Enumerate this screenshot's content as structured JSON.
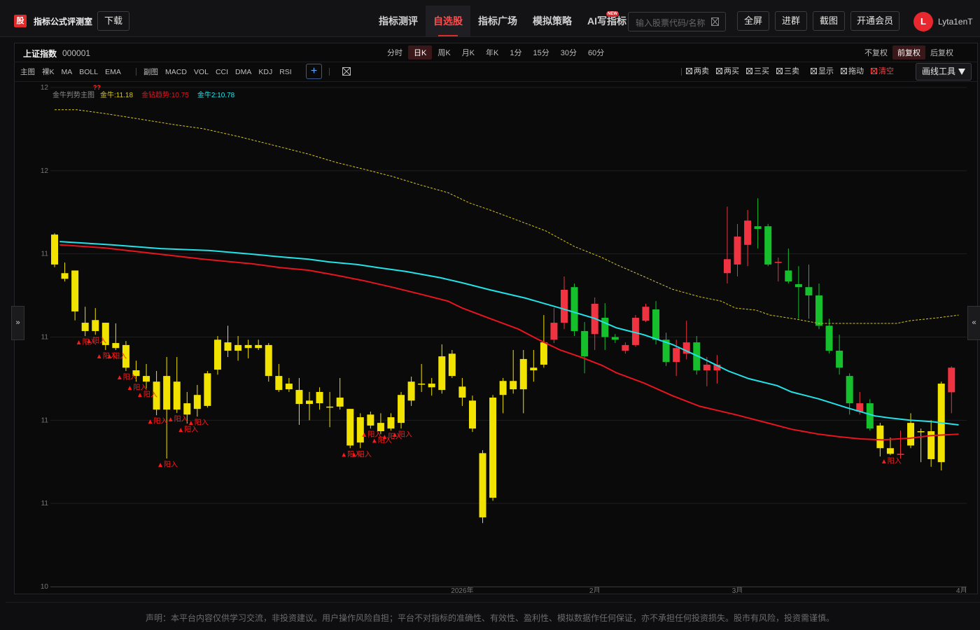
{
  "header": {
    "logo": "股",
    "site_name": "指标公式评测室",
    "download": "下载",
    "nav": [
      "指标测评",
      "自选股",
      "指标广场",
      "模拟策略",
      "AI写指标"
    ],
    "nav_active": 1,
    "nav_badge": "NEW",
    "search_placeholder": "输入股票代码/名称",
    "buttons": [
      "全屏",
      "进群",
      "截图",
      "开通会员"
    ],
    "avatar": "L",
    "username": "Lyta1enT"
  },
  "stock": {
    "name": "上证指数",
    "code": "000001"
  },
  "periods": [
    "分时",
    "日K",
    "周K",
    "月K",
    "年K",
    "1分",
    "15分",
    "30分",
    "60分"
  ],
  "period_active": 1,
  "adjustments": [
    "不复权",
    "前复权",
    "后复权"
  ],
  "adjustment_active": 1,
  "main_tools": [
    "主图",
    "裸K",
    "MA",
    "BOLL",
    "EMA"
  ],
  "sub_tools": [
    "副图",
    "MACD",
    "VOL",
    "CCI",
    "DMA",
    "KDJ",
    "RSI"
  ],
  "add_button": "+",
  "draw_toggles": [
    "两卖",
    "两买",
    "三买",
    "三卖",
    "显示",
    "拖动",
    "清空"
  ],
  "draw_toggle_alert": 6,
  "draw_tools": "画线工具",
  "side_tabs": [
    "»",
    "«"
  ],
  "footer": "声明：本平台内容仅供学习交流，非投资建议。用户操作风险自担；平台不对指标的准确性、有效性、盈利性、模拟数据作任何保证，亦不承担任何投资损失。股市有风险，投资需谨慎。",
  "chart_data": {
    "type": "candlestick",
    "title": "金牛判势主图",
    "title_note": "??",
    "categories": [
      null,
      null,
      null,
      null,
      null,
      null,
      null,
      null,
      null,
      null,
      null,
      null,
      null,
      null,
      null,
      null,
      null,
      null,
      null,
      null,
      null,
      null,
      null,
      null,
      null,
      null,
      null,
      null,
      null,
      null,
      null,
      null,
      null,
      null,
      null,
      null,
      null,
      null,
      null,
      null,
      "2026年",
      null,
      null,
      null,
      null,
      null,
      null,
      null,
      null,
      null,
      null,
      null,
      null,
      "2月",
      null,
      null,
      null,
      null,
      null,
      null,
      null,
      null,
      null,
      null,
      null,
      null,
      null,
      "3月",
      null,
      null,
      null,
      null,
      null,
      null,
      null,
      null,
      null,
      null,
      null,
      null,
      null,
      null,
      null,
      null,
      null,
      null,
      null,
      null,
      null,
      "4月"
    ],
    "open": [
      11.308,
      11.192,
      11.2,
      11.043,
      11.051,
      11.043,
      10.982,
      10.976,
      10.9,
      10.883,
      10.866,
      10.883,
      10.866,
      10.801,
      10.826,
      10.891,
      10.992,
      10.984,
      10.976,
      10.976,
      10.976,
      10.976,
      10.883,
      10.86,
      10.841,
      10.809,
      10.835,
      10.791,
      10.818,
      10.784,
      10.759,
      10.767,
      10.742,
      10.759,
      10.826,
      10.866,
      10.86,
      10.86,
      10.942,
      10.95,
      10.851,
      10.809,
      10.651,
      10.818,
      10.868,
      10.868,
      10.934,
      10.908,
      10.984,
      10.992,
      11.043,
      11.15,
      11.018,
      11.009,
      11.058,
      11.0,
      10.959,
      10.976,
      11.049,
      11.083,
      10.992,
      10.925,
      10.95,
      10.984,
      10.9,
      10.9,
      11.192,
      11.218,
      11.277,
      11.333,
      11.333,
      11.226,
      11.2,
      11.159,
      11.15,
      11.125,
      11.034,
      10.959,
      10.883,
      10.776,
      10.801,
      10.734,
      10.666,
      10.649,
      10.742,
      10.717,
      10.717,
      10.86,
      10.834,
      null
    ],
    "high": [
      11.312,
      11.224,
      11.2,
      11.091,
      11.087,
      11.043,
      11.041,
      10.988,
      10.929,
      10.919,
      10.898,
      10.94,
      10.94,
      10.835,
      10.856,
      10.898,
      11.003,
      11.034,
      11.003,
      10.992,
      10.992,
      10.982,
      10.919,
      10.877,
      10.877,
      10.835,
      10.849,
      10.835,
      10.877,
      10.784,
      10.771,
      10.776,
      10.771,
      10.771,
      10.835,
      10.881,
      10.919,
      10.877,
      10.978,
      10.961,
      10.877,
      10.824,
      10.66,
      10.826,
      10.877,
      10.961,
      10.961,
      10.961,
      11.066,
      11.087,
      11.182,
      11.161,
      11.045,
      11.119,
      11.102,
      11.009,
      10.984,
      11.066,
      11.1,
      11.108,
      11.013,
      10.992,
      11.049,
      11.003,
      10.94,
      10.946,
      11.392,
      11.34,
      11.382,
      11.417,
      11.34,
      11.239,
      11.266,
      11.213,
      11.218,
      11.161,
      11.055,
      11.007,
      10.891,
      10.835,
      10.813,
      10.742,
      10.698,
      10.719,
      10.771,
      10.725,
      10.75,
      10.866,
      10.912,
      null
    ],
    "low": [
      11.21,
      11.167,
      11.05,
      11.003,
      11.007,
      10.961,
      10.961,
      10.898,
      10.866,
      10.845,
      10.765,
      10.635,
      10.772,
      10.74,
      10.761,
      10.788,
      10.887,
      10.94,
      10.929,
      10.936,
      10.961,
      10.866,
      10.835,
      10.835,
      10.736,
      10.75,
      10.782,
      10.729,
      10.782,
      10.666,
      10.666,
      10.725,
      10.708,
      10.719,
      10.725,
      10.793,
      10.835,
      10.824,
      10.83,
      10.877,
      10.793,
      10.715,
      10.441,
      10.508,
      10.771,
      10.83,
      10.771,
      10.866,
      10.908,
      10.982,
      11.024,
      11.003,
      10.891,
      10.961,
      10.961,
      10.982,
      10.95,
      10.971,
      11.045,
      10.978,
      10.913,
      10.883,
      10.933,
      10.887,
      10.852,
      10.86,
      11.161,
      11.182,
      11.213,
      11.266,
      11.213,
      11.167,
      11.161,
      11.055,
      11.055,
      11.024,
      10.951,
      10.887,
      10.767,
      10.767,
      10.719,
      10.641,
      10.645,
      10.635,
      10.666,
      10.624,
      10.61,
      10.599,
      10.771,
      null
    ],
    "close": [
      11.218,
      11.175,
      11.077,
      11.018,
      11.018,
      10.976,
      10.967,
      10.908,
      10.883,
      10.866,
      10.782,
      10.782,
      10.782,
      10.767,
      10.784,
      10.793,
      10.902,
      10.959,
      10.959,
      10.967,
      10.967,
      10.883,
      10.841,
      10.843,
      10.799,
      10.799,
      10.801,
      10.791,
      10.791,
      10.674,
      10.683,
      10.734,
      10.717,
      10.725,
      10.742,
      10.809,
      10.86,
      10.849,
      10.841,
      10.883,
      10.818,
      10.725,
      10.458,
      10.517,
      10.826,
      10.843,
      10.843,
      10.9,
      10.917,
      11.043,
      11.142,
      11.018,
      10.942,
      11.1,
      11.0,
      10.992,
      10.976,
      11.058,
      11.091,
      10.992,
      10.925,
      10.967,
      10.984,
      10.9,
      10.917,
      10.917,
      11.234,
      11.302,
      11.35,
      11.325,
      11.218,
      11.226,
      11.167,
      11.15,
      11.125,
      11.034,
      10.959,
      10.908,
      10.801,
      10.801,
      10.725,
      10.666,
      10.649,
      10.649,
      10.674,
      10.717,
      10.633,
      10.624,
      10.908,
      null
    ],
    "candle_colors": [
      "#f2e200",
      "#f2e200",
      "#f2e200",
      "#f2e200",
      "#f2e200",
      "#f2e200",
      "#f2e200",
      "#f2e200",
      "#f2e200",
      "#f2e200",
      "#f2e200",
      "#f2e200",
      "#f2e200",
      "#f2e200",
      "#f2e200",
      "#f2e200",
      "#f2e200",
      "#f2e200",
      "#f2e200",
      "#f2e200",
      "#f2e200",
      "#f2e200",
      "#f2e200",
      "#f2e200",
      "#f2e200",
      "#f2e200",
      "#f2e200",
      "#f2e200",
      "#f2e200",
      "#f2e200",
      "#f2e200",
      "#f2e200",
      "#f2e200",
      "#f2e200",
      "#f2e200",
      "#f2e200",
      "#f2e200",
      "#f2e200",
      "#f2e200",
      "#f2e200",
      "#f2e200",
      "#f2e200",
      "#f2e200",
      "#f2e200",
      "#f2e200",
      "#f2e200",
      "#f2e200",
      "#f2e200",
      "#f2e200",
      "#ef3340",
      "#ef3340",
      "#16c02d",
      "#16c02d",
      "#ef3340",
      "#16c02d",
      "#16c02d",
      "#ef3340",
      "#ef3340",
      "#ef3340",
      "#16c02d",
      "#16c02d",
      "#ef3340",
      "#ef3340",
      "#16c02d",
      "#ef3340",
      "#ef3340",
      "#ef3340",
      "#ef3340",
      "#ef3340",
      "#16c02d",
      "#16c02d",
      "#ef3340",
      "#16c02d",
      "#16c02d",
      "#16c02d",
      "#16c02d",
      "#16c02d",
      "#16c02d",
      "#16c02d",
      "#ef3340",
      "#16c02d",
      "#f2e200",
      "#f2e200",
      "#ef3340",
      "#f2e200",
      "#f2e200",
      "#f2e200",
      "#f2e200",
      "#ef3340",
      null
    ],
    "ylim": [
      10.25,
      11.75
    ],
    "yticks": [
      {
        "value": 11.75,
        "label": "12"
      },
      {
        "value": 11.5,
        "label": "12"
      },
      {
        "value": 11.25,
        "label": "11"
      },
      {
        "value": 11.0,
        "label": "11"
      },
      {
        "value": 10.75,
        "label": "11"
      },
      {
        "value": 10.5,
        "label": "11"
      },
      {
        "value": 10.25,
        "label": "10"
      }
    ],
    "grid": true,
    "series": [
      {
        "name": "金牛:11.18",
        "color": "#d8c81a",
        "style": "dashed",
        "x": [
          0,
          2.2,
          4.9,
          8.4,
          11.8,
          14.6,
          18.0,
          21.4,
          24.9,
          27.6,
          30.4,
          33.1,
          35.9,
          38.6,
          40.7,
          42.7,
          45.5,
          48.2,
          51.0,
          53.7,
          55.1,
          57.8,
          60.6,
          63.3,
          65.4,
          66.8,
          68.8,
          70.2,
          72.9,
          75.0,
          82.6,
          83.9,
          86.7,
          88.7
        ],
        "values": [
          11.683,
          11.683,
          11.672,
          11.655,
          11.638,
          11.626,
          11.603,
          11.577,
          11.55,
          11.525,
          11.504,
          11.483,
          11.457,
          11.434,
          11.403,
          11.382,
          11.35,
          11.319,
          11.272,
          11.239,
          11.218,
          11.182,
          11.144,
          11.121,
          11.108,
          11.087,
          11.081,
          11.066,
          11.053,
          11.041,
          11.041,
          11.049,
          11.058,
          11.066
        ]
      },
      {
        "name": "金钻趋势:10.75",
        "color": "#e8141e",
        "style": "solid",
        "x": [
          0.5,
          4.9,
          9.8,
          14.6,
          19.4,
          22.1,
          24.9,
          27.6,
          30.4,
          33.1,
          35.9,
          38.6,
          40.0,
          42.7,
          45.5,
          47.5,
          49.6,
          51.6,
          53.7,
          55.1,
          57.8,
          60.6,
          63.3,
          66.8,
          70.2,
          72.3,
          75.0,
          77.1,
          79.1,
          81.2,
          83.9,
          86.0,
          88.7
        ],
        "values": [
          11.277,
          11.268,
          11.251,
          11.234,
          11.22,
          11.209,
          11.201,
          11.186,
          11.169,
          11.15,
          11.129,
          11.108,
          11.087,
          11.056,
          11.024,
          10.992,
          10.961,
          10.94,
          10.915,
          10.893,
          10.862,
          10.824,
          10.792,
          10.767,
          10.74,
          10.723,
          10.708,
          10.7,
          10.694,
          10.691,
          10.696,
          10.704,
          10.708
        ]
      },
      {
        "name": "金牛2:10.78",
        "color": "#22e3e8",
        "style": "solid",
        "x": [
          0.5,
          5.6,
          10.4,
          15.2,
          19.4,
          22.1,
          24.9,
          26.9,
          29.7,
          31.7,
          34.5,
          37.9,
          40.0,
          42.7,
          46.2,
          49.6,
          53.0,
          55.1,
          57.8,
          60.6,
          63.3,
          66.1,
          68.1,
          70.9,
          72.3,
          75.0,
          77.7,
          80.5,
          81.9,
          83.9,
          86.0,
          88.7
        ],
        "values": [
          11.287,
          11.277,
          11.266,
          11.26,
          11.249,
          11.241,
          11.234,
          11.226,
          11.218,
          11.209,
          11.197,
          11.178,
          11.163,
          11.142,
          11.117,
          11.087,
          11.056,
          11.028,
          11.007,
          10.978,
          10.94,
          10.898,
          10.875,
          10.854,
          10.835,
          10.814,
          10.788,
          10.763,
          10.757,
          10.75,
          10.746,
          10.736
        ]
      }
    ],
    "signals": {
      "label": "▲阳入",
      "color": "#ff1a1a",
      "indices": [
        3,
        4,
        5,
        6,
        7,
        8,
        9,
        10,
        11,
        12,
        13,
        14,
        29,
        30,
        31,
        32,
        33,
        34,
        82
      ]
    }
  }
}
